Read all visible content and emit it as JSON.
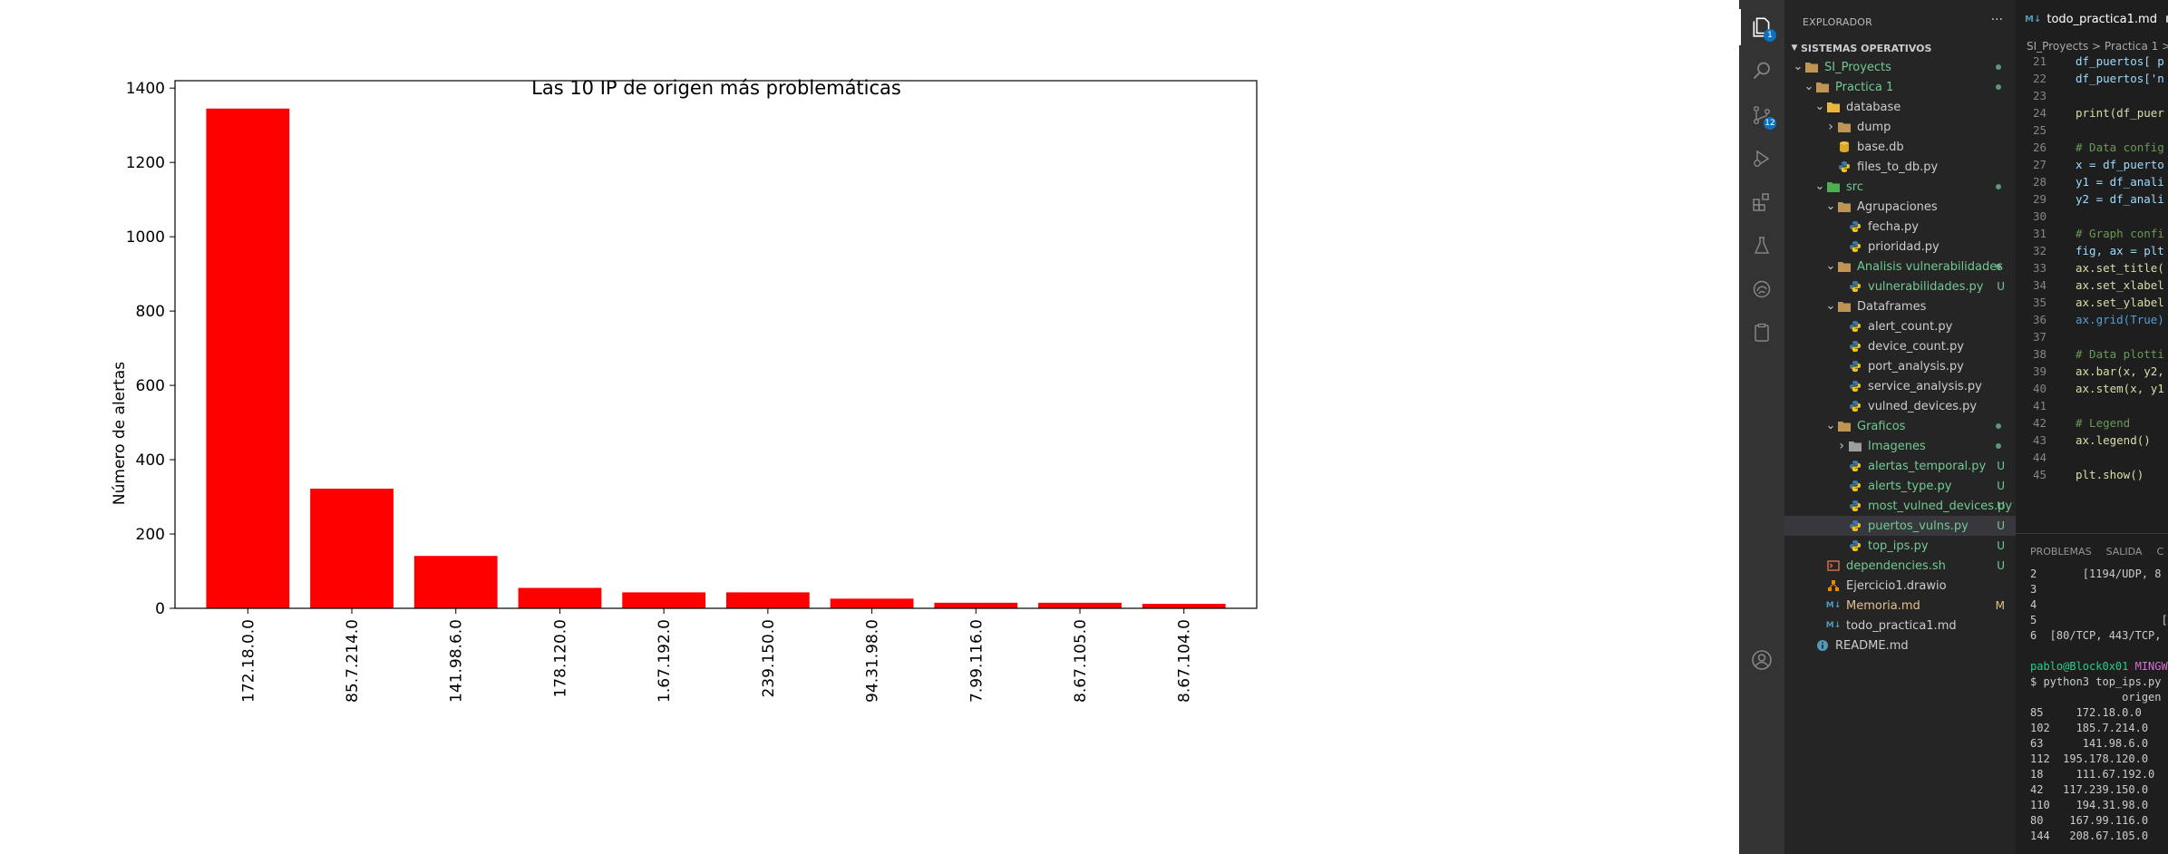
{
  "chart_data": {
    "type": "bar",
    "title": "Las 10 IP de origen más problemáticas",
    "xlabel": "",
    "ylabel": "Número de alertas",
    "ylim": [
      0,
      1420
    ],
    "yticks": [
      0,
      200,
      400,
      600,
      800,
      1000,
      1200,
      1400
    ],
    "ytick_labels": [
      "0",
      "200",
      "400",
      "600",
      "800",
      "1000",
      "1200",
      "1400"
    ],
    "bar_color": "#ff0000",
    "categories": [
      "172.18.0.0",
      "85.7.214.0",
      "141.98.6.0",
      "178.120.0",
      "1.67.192.0",
      "239.150.0",
      "94.31.98.0",
      "7.99.116.0",
      "8.67.105.0",
      "8.67.104.0"
    ],
    "values": [
      1345,
      322,
      141,
      55,
      43,
      43,
      26,
      15,
      15,
      12
    ]
  },
  "vscode": {
    "colors": {
      "accent": "#0e70c0",
      "untracked": "#73c991",
      "modified": "#e2c08d"
    },
    "activity_bar": {
      "items": [
        {
          "icon": "files-icon",
          "badge": "1"
        },
        {
          "icon": "search-icon",
          "badge": ""
        },
        {
          "icon": "source-control-icon",
          "badge": "12"
        },
        {
          "icon": "run-debug-icon",
          "badge": ""
        },
        {
          "icon": "extensions-icon",
          "badge": ""
        },
        {
          "icon": "testing-icon",
          "badge": ""
        },
        {
          "icon": "remote-explorer-icon",
          "badge": ""
        },
        {
          "icon": "clipboard-icon",
          "badge": ""
        }
      ],
      "account_icon": "account-icon"
    },
    "explorer": {
      "title": "EXPLORADOR",
      "more": "···",
      "workspace": "SISTEMAS OPERATIVOS",
      "tree": [
        {
          "label": "SI_Proyects",
          "kind": "folder",
          "depth": 0,
          "open": true,
          "color": "#73c991",
          "dot": true,
          "status": ""
        },
        {
          "label": "Practica 1",
          "kind": "folder",
          "depth": 1,
          "open": true,
          "color": "#73c991",
          "dot": true,
          "status": ""
        },
        {
          "label": "database",
          "kind": "folder-db",
          "depth": 2,
          "open": true,
          "color": "#cccccc",
          "dot": false,
          "status": ""
        },
        {
          "label": "dump",
          "kind": "folder",
          "depth": 3,
          "open": false,
          "color": "#cccccc",
          "dot": false,
          "status": ""
        },
        {
          "label": "base.db",
          "kind": "db",
          "depth": 3,
          "open": false,
          "color": "#cccccc",
          "dot": false,
          "status": ""
        },
        {
          "label": "files_to_db.py",
          "kind": "py",
          "depth": 3,
          "open": false,
          "color": "#cccccc",
          "dot": false,
          "status": ""
        },
        {
          "label": "src",
          "kind": "folder-src",
          "depth": 2,
          "open": true,
          "color": "#73c991",
          "dot": true,
          "status": ""
        },
        {
          "label": "Agrupaciones",
          "kind": "folder",
          "depth": 3,
          "open": true,
          "color": "#cccccc",
          "dot": false,
          "status": ""
        },
        {
          "label": "fecha.py",
          "kind": "py",
          "depth": 4,
          "open": false,
          "color": "#cccccc",
          "dot": false,
          "status": ""
        },
        {
          "label": "prioridad.py",
          "kind": "py",
          "depth": 4,
          "open": false,
          "color": "#cccccc",
          "dot": false,
          "status": ""
        },
        {
          "label": "Analisis vulnerabilidades",
          "kind": "folder",
          "depth": 3,
          "open": true,
          "color": "#73c991",
          "dot": true,
          "status": ""
        },
        {
          "label": "vulnerabilidades.py",
          "kind": "py",
          "depth": 4,
          "open": false,
          "color": "#73c991",
          "dot": false,
          "status": "U"
        },
        {
          "label": "Dataframes",
          "kind": "folder",
          "depth": 3,
          "open": true,
          "color": "#cccccc",
          "dot": false,
          "status": ""
        },
        {
          "label": "alert_count.py",
          "kind": "py",
          "depth": 4,
          "open": false,
          "color": "#cccccc",
          "dot": false,
          "status": ""
        },
        {
          "label": "device_count.py",
          "kind": "py",
          "depth": 4,
          "open": false,
          "color": "#cccccc",
          "dot": false,
          "status": ""
        },
        {
          "label": "port_analysis.py",
          "kind": "py",
          "depth": 4,
          "open": false,
          "color": "#cccccc",
          "dot": false,
          "status": ""
        },
        {
          "label": "service_analysis.py",
          "kind": "py",
          "depth": 4,
          "open": false,
          "color": "#cccccc",
          "dot": false,
          "status": ""
        },
        {
          "label": "vulned_devices.py",
          "kind": "py",
          "depth": 4,
          "open": false,
          "color": "#cccccc",
          "dot": false,
          "status": ""
        },
        {
          "label": "Graficos",
          "kind": "folder",
          "depth": 3,
          "open": true,
          "color": "#73c991",
          "dot": true,
          "status": ""
        },
        {
          "label": "Imagenes",
          "kind": "folder-img",
          "depth": 4,
          "open": false,
          "color": "#73c991",
          "dot": true,
          "status": ""
        },
        {
          "label": "alertas_temporal.py",
          "kind": "py",
          "depth": 4,
          "open": false,
          "color": "#73c991",
          "dot": false,
          "status": "U"
        },
        {
          "label": "alerts_type.py",
          "kind": "py",
          "depth": 4,
          "open": false,
          "color": "#73c991",
          "dot": false,
          "status": "U"
        },
        {
          "label": "most_vulned_devices.py",
          "kind": "py",
          "depth": 4,
          "open": false,
          "color": "#73c991",
          "dot": false,
          "status": "U"
        },
        {
          "label": "puertos_vulns.py",
          "kind": "py",
          "depth": 4,
          "open": false,
          "color": "#73c991",
          "dot": false,
          "status": "U",
          "selected": true
        },
        {
          "label": "top_ips.py",
          "kind": "py",
          "depth": 4,
          "open": false,
          "color": "#73c991",
          "dot": false,
          "status": "U"
        },
        {
          "label": "dependencies.sh",
          "kind": "sh",
          "depth": 2,
          "open": false,
          "color": "#73c991",
          "dot": false,
          "status": "U"
        },
        {
          "label": "Ejercicio1.drawio",
          "kind": "drawio",
          "depth": 2,
          "open": false,
          "color": "#cccccc",
          "dot": false,
          "status": ""
        },
        {
          "label": "Memoria.md",
          "kind": "md",
          "depth": 2,
          "open": false,
          "color": "#e2c08d",
          "dot": false,
          "status": "M"
        },
        {
          "label": "todo_practica1.md",
          "kind": "md",
          "depth": 2,
          "open": false,
          "color": "#cccccc",
          "dot": false,
          "status": ""
        },
        {
          "label": "README.md",
          "kind": "info",
          "depth": 1,
          "open": false,
          "color": "#cccccc",
          "dot": false,
          "status": ""
        }
      ]
    },
    "editor": {
      "tab_label": "todo_practica1.md",
      "tab_icon": "M↓",
      "breadcrumb": "SI_Proyects > Practica 1 >",
      "lines": [
        {
          "n": "21",
          "text": "df_puertos[ p",
          "cls": "c-def"
        },
        {
          "n": "22",
          "text": "df_puertos['n",
          "cls": "c-def"
        },
        {
          "n": "23",
          "text": "",
          "cls": "c-wh"
        },
        {
          "n": "24",
          "text": "print(df_puer",
          "cls": "c-fn"
        },
        {
          "n": "25",
          "text": "",
          "cls": "c-wh"
        },
        {
          "n": "26",
          "text": "# Data config",
          "cls": "c-cm"
        },
        {
          "n": "27",
          "text": "x = df_puerto",
          "cls": "c-def"
        },
        {
          "n": "28",
          "text": "y1 = df_anali",
          "cls": "c-def"
        },
        {
          "n": "29",
          "text": "y2 = df_anali",
          "cls": "c-def"
        },
        {
          "n": "30",
          "text": "",
          "cls": "c-wh"
        },
        {
          "n": "31",
          "text": "# Graph confi",
          "cls": "c-cm"
        },
        {
          "n": "32",
          "text": "fig, ax = plt",
          "cls": "c-def"
        },
        {
          "n": "33",
          "text": "ax.set_title(",
          "cls": "c-fn"
        },
        {
          "n": "34",
          "text": "ax.set_xlabel",
          "cls": "c-fn"
        },
        {
          "n": "35",
          "text": "ax.set_ylabel",
          "cls": "c-fn"
        },
        {
          "n": "36",
          "text": "ax.grid(True)",
          "cls": "c-kw"
        },
        {
          "n": "37",
          "text": "",
          "cls": "c-wh"
        },
        {
          "n": "38",
          "text": "# Data plotti",
          "cls": "c-cm"
        },
        {
          "n": "39",
          "text": "ax.bar(x, y2,",
          "cls": "c-fn"
        },
        {
          "n": "40",
          "text": "ax.stem(x, y1",
          "cls": "c-fn"
        },
        {
          "n": "41",
          "text": "",
          "cls": "c-wh"
        },
        {
          "n": "42",
          "text": "# Legend",
          "cls": "c-cm"
        },
        {
          "n": "43",
          "text": "ax.legend()",
          "cls": "c-fn"
        },
        {
          "n": "44",
          "text": "",
          "cls": "c-wh"
        },
        {
          "n": "45",
          "text": "plt.show()",
          "cls": "c-fn"
        }
      ]
    },
    "panel": {
      "tabs": [
        "PROBLEMAS",
        "SALIDA",
        "C"
      ],
      "terminal_lines": [
        {
          "text": "2       [1194/UDP, 8",
          "kind": "plain"
        },
        {
          "text": "3",
          "kind": "plain"
        },
        {
          "text": "4",
          "kind": "plain"
        },
        {
          "text": "5                   [",
          "kind": "plain"
        },
        {
          "text": "6  [80/TCP, 443/TCP,",
          "kind": "plain"
        },
        {
          "text": "",
          "kind": "plain"
        },
        {
          "text": "",
          "kind": "prompt",
          "user": "pablo@Block0x01",
          "host": "MINGW"
        },
        {
          "text": "$ python3 top_ips.py",
          "kind": "plain"
        },
        {
          "text": "              origen  c",
          "kind": "plain"
        },
        {
          "text": "85     172.18.0.0",
          "kind": "plain"
        },
        {
          "text": "102    185.7.214.0",
          "kind": "plain"
        },
        {
          "text": "63      141.98.6.0",
          "kind": "plain"
        },
        {
          "text": "112  195.178.120.0",
          "kind": "plain"
        },
        {
          "text": "18     111.67.192.0",
          "kind": "plain"
        },
        {
          "text": "42   117.239.150.0",
          "kind": "plain"
        },
        {
          "text": "110    194.31.98.0",
          "kind": "plain"
        },
        {
          "text": "80    167.99.116.0",
          "kind": "plain"
        },
        {
          "text": "144   208.67.105.0",
          "kind": "plain"
        }
      ]
    }
  }
}
